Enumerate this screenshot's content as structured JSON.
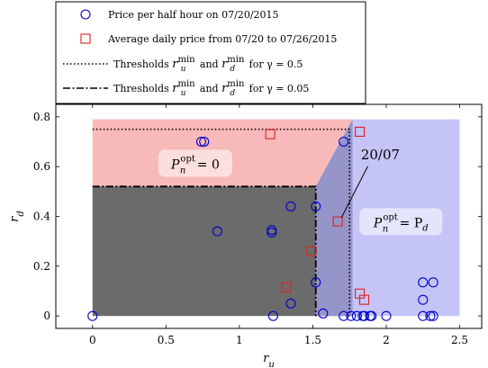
{
  "chart_data": {
    "type": "scatter",
    "xlabel": "r_u",
    "ylabel": "r_d",
    "xlim": [
      -0.25,
      2.65
    ],
    "ylim": [
      -0.05,
      0.85
    ],
    "xticks": [
      {
        "value": 0,
        "label": "0"
      },
      {
        "value": 0.5,
        "label": "0.5"
      },
      {
        "value": 1,
        "label": "1"
      },
      {
        "value": 1.5,
        "label": "1.5"
      },
      {
        "value": 2,
        "label": "2"
      },
      {
        "value": 2.5,
        "label": "2.5"
      }
    ],
    "yticks": [
      {
        "value": 0,
        "label": "0"
      },
      {
        "value": 0.2,
        "label": "0.2"
      },
      {
        "value": 0.4,
        "label": "0.4"
      },
      {
        "value": 0.6,
        "label": "0.6"
      },
      {
        "value": 0.8,
        "label": "0.8"
      }
    ],
    "regions": {
      "pink": {
        "color": "#f7b9b9",
        "polygon": [
          [
            0,
            0.52
          ],
          [
            0,
            0.79
          ],
          [
            1.77,
            0.79
          ],
          [
            1.52,
            0.52
          ]
        ]
      },
      "blue": {
        "color": "#c4c4f7",
        "polygon": [
          [
            1.52,
            0
          ],
          [
            1.52,
            0.52
          ],
          [
            1.77,
            0.79
          ],
          [
            2.5,
            0.79
          ],
          [
            2.5,
            0
          ]
        ]
      },
      "gray": {
        "color": "#6b6b6b",
        "rect": [
          0,
          0,
          1.52,
          0.52
        ]
      },
      "overlap": {
        "color": "#9595c9",
        "polygon": [
          [
            1.52,
            0
          ],
          [
            1.52,
            0.52
          ],
          [
            1.77,
            0.79
          ],
          [
            1.77,
            0
          ]
        ]
      }
    },
    "thresholds": {
      "gamma_05": {
        "ru_min": 1.75,
        "rd_min": 0.75,
        "color": "#000000"
      },
      "gamma_005": {
        "ru_min": 1.52,
        "rd_min": 0.52,
        "color": "#000000"
      }
    },
    "series": [
      {
        "name": "Price per half hour on 07/20/2015",
        "marker": "circle",
        "color": "#0000cc",
        "points": [
          [
            0,
            0
          ],
          [
            0.74,
            0.7
          ],
          [
            0.76,
            0.7
          ],
          [
            0.85,
            0.34
          ],
          [
            1.22,
            0.345
          ],
          [
            1.22,
            0.335
          ],
          [
            1.23,
            0
          ],
          [
            1.35,
            0.44
          ],
          [
            1.35,
            0.05
          ],
          [
            1.52,
            0.44
          ],
          [
            1.52,
            0.135
          ],
          [
            1.57,
            0.01
          ],
          [
            1.71,
            0.7
          ],
          [
            1.71,
            0
          ],
          [
            1.76,
            0
          ],
          [
            1.8,
            0
          ],
          [
            1.84,
            0
          ],
          [
            1.85,
            0
          ],
          [
            1.89,
            0
          ],
          [
            1.9,
            0
          ],
          [
            2.0,
            0
          ],
          [
            2.25,
            0.135
          ],
          [
            2.25,
            0.065
          ],
          [
            2.25,
            0
          ],
          [
            2.3,
            0
          ],
          [
            2.32,
            0.135
          ],
          [
            2.32,
            0
          ]
        ]
      },
      {
        "name": "Average daily price from 07/20 to 07/26/2015",
        "marker": "square",
        "color": "#e02020",
        "points": [
          [
            1.21,
            0.73
          ],
          [
            1.32,
            0.115
          ],
          [
            1.49,
            0.26
          ],
          [
            1.67,
            0.38
          ],
          [
            1.82,
            0.74
          ],
          [
            1.82,
            0.09
          ],
          [
            1.85,
            0.065
          ]
        ]
      }
    ],
    "legend": {
      "placement": "top-left",
      "entries": [
        {
          "kind": "circle",
          "label": "Price per half hour on 07/20/2015"
        },
        {
          "kind": "square",
          "label": "Average daily price from 07/20 to 07/26/2015"
        },
        {
          "kind": "dotted",
          "prefix": "Thresholds",
          "mid": "and",
          "suffix": "for γ = 0.5"
        },
        {
          "kind": "dashdot",
          "prefix": "Thresholds",
          "mid": "and",
          "suffix": "for γ = 0.05"
        }
      ]
    },
    "annotations": [
      {
        "text": "P",
        "sub": "n",
        "sup": "opt",
        "rest": " = 0",
        "at": [
          0.7,
          0.61
        ]
      },
      {
        "text": "P",
        "sub": "n",
        "sup": "opt",
        "rest": " = P",
        "rest_sub": "d",
        "at": [
          2.1,
          0.375
        ]
      },
      {
        "text": "20/07",
        "at": [
          1.96,
          0.63
        ],
        "arrow_to": [
          1.67,
          0.38
        ]
      }
    ]
  }
}
